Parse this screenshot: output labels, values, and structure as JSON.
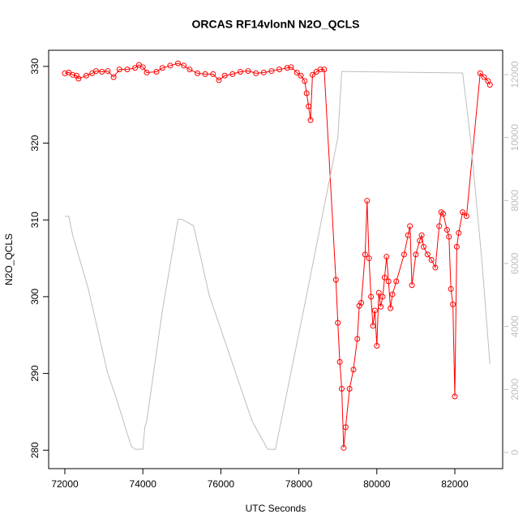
{
  "chart_data": {
    "type": "line",
    "title": "ORCAS RF14vlonN N2O_QCLS",
    "x_label": "UTC Seconds",
    "y_label": "N2O_QCLS",
    "xlim": [
      71584,
      83227
    ],
    "xticks": [
      72000,
      74000,
      76000,
      78000,
      80000,
      82000
    ],
    "ylim": [
      277.6,
      332.1
    ],
    "yticks": [
      280,
      290,
      300,
      310,
      320,
      330
    ],
    "y2lim": [
      -515,
      12772
    ],
    "y2ticks": [
      0,
      2000,
      4000,
      6000,
      8000,
      10000,
      12000
    ],
    "series": [
      {
        "color": "#ff0000",
        "markers": true,
        "x": [
          72000,
          72100,
          72200,
          72300,
          72350,
          72550,
          72700,
          72800,
          72950,
          73100,
          73250,
          73400,
          73600,
          73800,
          73900,
          74000,
          74100,
          74350,
          74500,
          74700,
          74900,
          75050,
          75200,
          75400,
          75600,
          75800,
          75950,
          76100,
          76300,
          76500,
          76700,
          76900,
          77100,
          77300,
          77500,
          77700,
          77800,
          77950,
          78050,
          78150,
          78200,
          78250,
          78300,
          78350,
          78450,
          78550,
          78650,
          78950,
          79000,
          79050,
          79100,
          79150,
          79200,
          79300,
          79400,
          79500,
          79550,
          79600,
          79700,
          79750,
          79800,
          79850,
          79900,
          79950,
          80000,
          80050,
          80100,
          80150,
          80200,
          80250,
          80300,
          80350,
          80400,
          80500,
          80700,
          80800,
          80850,
          80900,
          81000,
          81100,
          81150,
          81200,
          81300,
          81400,
          81500,
          81600,
          81650,
          81700,
          81800,
          81850,
          81900,
          81950,
          82000,
          82050,
          82100,
          82200,
          82300,
          82650,
          82750,
          82850,
          82900
        ],
        "values": [
          329.1,
          329.2,
          328.9,
          328.8,
          328.4,
          328.8,
          329.1,
          329.4,
          329.3,
          329.4,
          328.6,
          329.6,
          329.6,
          329.8,
          330.2,
          329.9,
          329.2,
          329.3,
          329.8,
          330.1,
          330.4,
          330.1,
          329.6,
          329.1,
          329.0,
          329.0,
          328.2,
          328.8,
          329.0,
          329.3,
          329.4,
          329.1,
          329.2,
          329.4,
          329.6,
          329.8,
          329.9,
          329.2,
          328.8,
          328.1,
          326.5,
          324.8,
          323.0,
          328.9,
          329.3,
          329.6,
          329.6,
          302.2,
          296.6,
          291.5,
          288,
          280.3,
          283,
          288,
          290.5,
          294.5,
          298.8,
          299.2,
          305.5,
          312.5,
          305,
          300,
          296.2,
          298.2,
          293.6,
          300.5,
          298.7,
          300,
          302.5,
          305.2,
          302,
          298.5,
          300.3,
          302,
          305.5,
          308,
          309.2,
          301.5,
          305.5,
          307.3,
          308,
          306.5,
          305.5,
          304.8,
          303.8,
          309.2,
          311,
          310.8,
          308.7,
          307.8,
          301,
          299,
          287,
          306.5,
          308.3,
          311,
          310.5,
          329.1,
          328.6,
          328.1,
          327.6
        ]
      },
      {
        "color": "#bebebe",
        "axis": "y2",
        "markers": false,
        "x": [
          72000,
          72100,
          72200,
          72600,
          73100,
          73300,
          73700,
          73800,
          74000,
          74050,
          74100,
          74500,
          74900,
          75000,
          75300,
          75700,
          76800,
          77200,
          77400,
          78200,
          79000,
          79100,
          82200,
          82400,
          82700,
          82900
        ],
        "values": [
          7500,
          7500,
          6900,
          5200,
          2500,
          1800,
          200,
          100,
          100,
          800,
          1000,
          4500,
          7400,
          7400,
          7200,
          5000,
          1000,
          100,
          100,
          5000,
          10000,
          12100,
          12050,
          10000,
          6000,
          2800
        ]
      }
    ]
  }
}
